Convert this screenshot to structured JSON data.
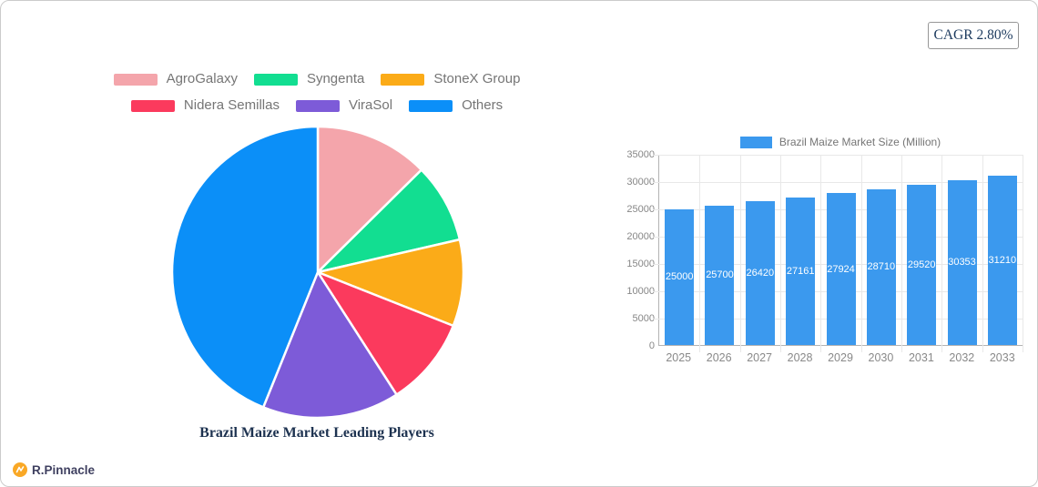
{
  "page": {
    "cagr_label": "CAGR 2.80%",
    "brand": "R.Pinnacle"
  },
  "chart_data": [
    {
      "type": "pie",
      "title": "Brazil Maize Market Leading Players",
      "labels": [
        "AgroGalaxy",
        "Syngenta",
        "StoneX Group",
        "Nidera Semillas",
        "ViraSol",
        "Others"
      ],
      "values_percent": [
        12.6,
        8.8,
        9.6,
        9.9,
        15.2,
        43.9
      ],
      "colors": [
        "#f4a5ab",
        "#12de91",
        "#fbab18",
        "#fb3a5d",
        "#7d5bd8",
        "#0b8ff8"
      ],
      "start_angle_deg": 0,
      "direction": "clockwise",
      "legend_position": "top",
      "legend_rows_of": 3,
      "slice_border_color": "#ffffff"
    },
    {
      "type": "bar",
      "legend_label": "Brazil Maize Market Size (Million)",
      "categories": [
        "2025",
        "2026",
        "2027",
        "2028",
        "2029",
        "2030",
        "2031",
        "2032",
        "2033"
      ],
      "values": [
        25000,
        25700,
        26420,
        27161,
        27924,
        28710,
        29520,
        30353,
        31210
      ],
      "bar_color": "#3b99ee",
      "value_label_color": "#ffffff",
      "ylim": [
        0,
        35000
      ],
      "y_ticks": [
        0,
        5000,
        10000,
        15000,
        20000,
        25000,
        30000,
        35000
      ],
      "grid": true,
      "legend_position": "top"
    }
  ]
}
